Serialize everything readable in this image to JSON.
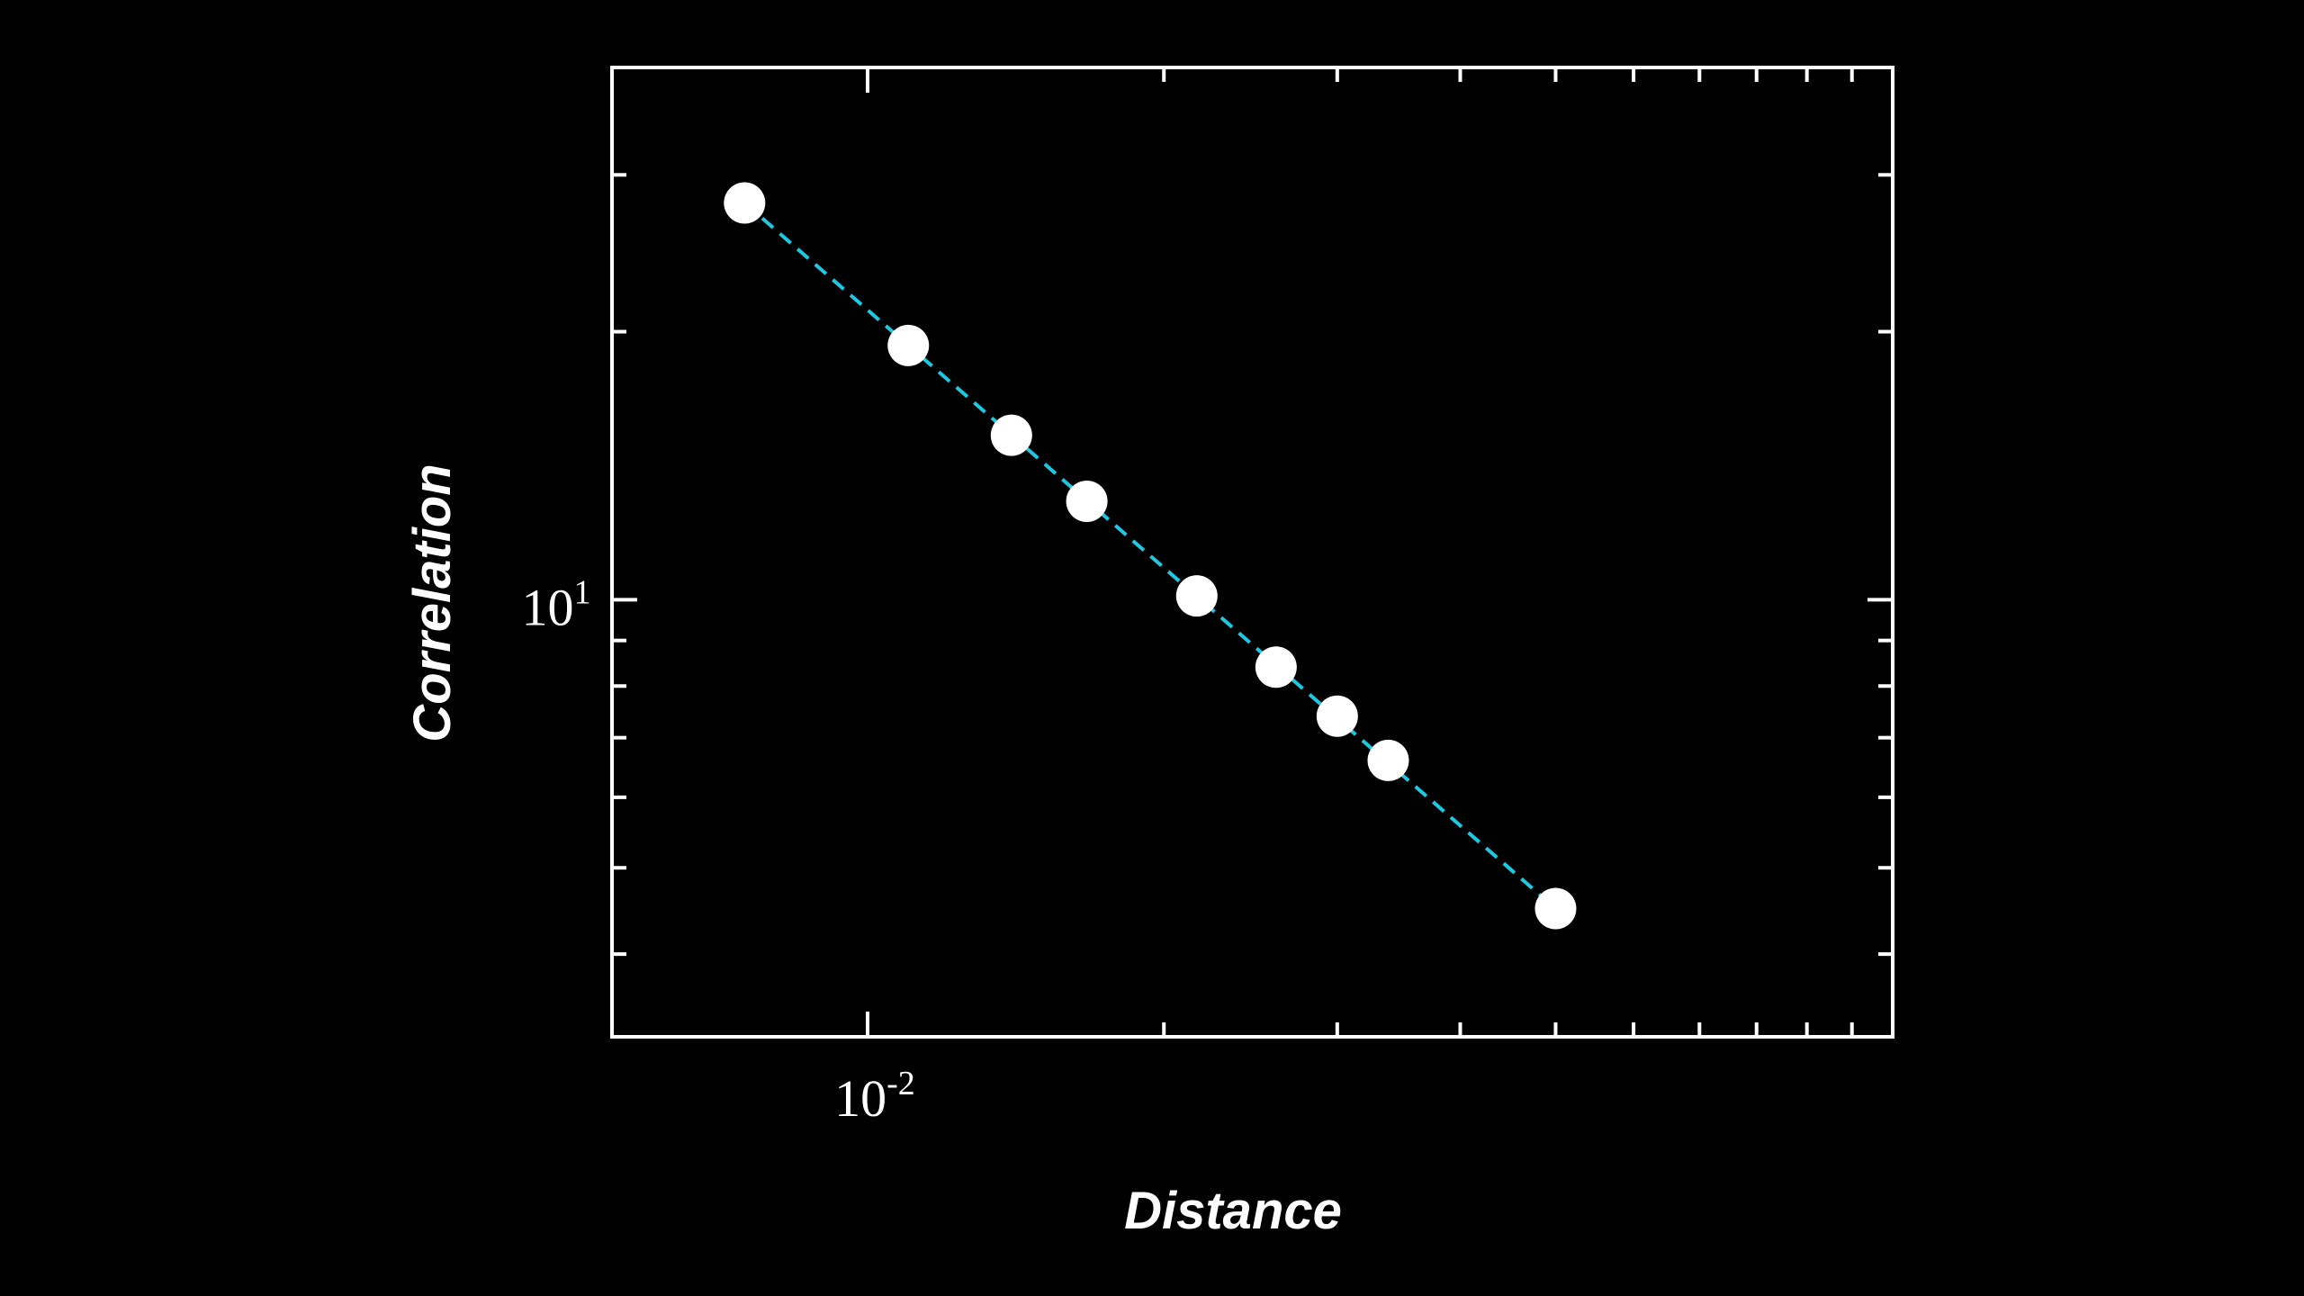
{
  "chart_data": {
    "type": "scatter",
    "title": "",
    "xlabel": "Distance",
    "ylabel": "Correlation",
    "x_scale": "log",
    "y_scale": "log",
    "xlim": [
      0.0055,
      0.11
    ],
    "ylim": [
      3.23,
      39.6
    ],
    "x_major_ticks": [
      {
        "value": 0.01,
        "base": "10",
        "exponent": "-2"
      }
    ],
    "y_major_ticks": [
      {
        "value": 10,
        "base": "10",
        "exponent": "1"
      }
    ],
    "x_minor_ticks": [
      0.02,
      0.03,
      0.04,
      0.05,
      0.06,
      0.07,
      0.08,
      0.09,
      0.1
    ],
    "y_minor_ticks": [
      4,
      5,
      6,
      7,
      8,
      9,
      20,
      30
    ],
    "grid": false,
    "legend": "none",
    "series": [
      {
        "marker": "circle",
        "x": [
          0.0075,
          0.011,
          0.014,
          0.0167,
          0.0216,
          0.026,
          0.03,
          0.0338,
          0.05
        ],
        "y": [
          27.9,
          19.3,
          15.3,
          12.9,
          10.1,
          8.4,
          7.4,
          6.6,
          4.5
        ]
      }
    ],
    "fit_line": {
      "style": "dashed",
      "x": [
        0.0075,
        0.05
      ],
      "y": [
        27.9,
        4.5
      ]
    }
  },
  "colors": {
    "background": "#000000",
    "axis": "#ffffff",
    "marker": "#ffffff",
    "fit_line": "#1ec8e0"
  }
}
